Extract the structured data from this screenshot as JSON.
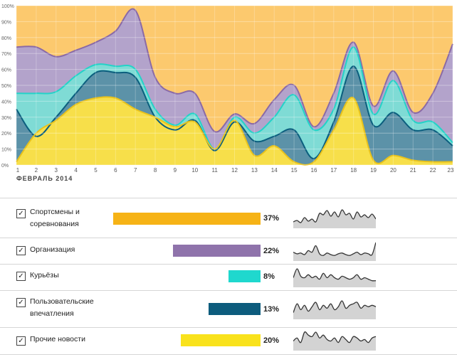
{
  "chart_data": {
    "type": "area",
    "stacking": "stacked-percent",
    "xlabel": "ФЕВРАЛЬ 2014",
    "ylabel": "",
    "x": [
      1,
      2,
      3,
      4,
      5,
      6,
      7,
      8,
      9,
      10,
      11,
      12,
      13,
      14,
      15,
      16,
      17,
      18,
      19,
      20,
      21,
      22,
      23
    ],
    "yticks": [
      "0%",
      "10%",
      "20%",
      "30%",
      "40%",
      "50%",
      "60%",
      "70%",
      "80%",
      "90%",
      "100%"
    ],
    "ylim": [
      0,
      100
    ],
    "grid": true,
    "series": [
      {
        "name": "Прочие новости",
        "color": "#f7df4a",
        "line": "#e8c21c",
        "cumulative": [
          2,
          20,
          28,
          38,
          42,
          42,
          35,
          30,
          24,
          27,
          10,
          28,
          6,
          12,
          2,
          2,
          22,
          42,
          3,
          6,
          3,
          2,
          2
        ]
      },
      {
        "name": "Пользовательские впечатления",
        "color": "#5c92a8",
        "line": "#0b5e7e",
        "cumulative": [
          35,
          18,
          30,
          45,
          58,
          58,
          55,
          30,
          22,
          28,
          9,
          27,
          15,
          18,
          22,
          4,
          27,
          62,
          25,
          33,
          22,
          22,
          12
        ]
      },
      {
        "name": "Курьёзы",
        "color": "#7fdbd5",
        "line": "#23d3c8",
        "cumulative": [
          45,
          45,
          46,
          56,
          63,
          62,
          60,
          35,
          25,
          32,
          10,
          30,
          20,
          30,
          44,
          22,
          35,
          74,
          32,
          53,
          28,
          27,
          14
        ]
      },
      {
        "name": "Организация",
        "color": "#b3a3cb",
        "line": "#8a6aa6",
        "cumulative": [
          74,
          74,
          68,
          72,
          77,
          84,
          97,
          55,
          45,
          45,
          21,
          32,
          26,
          41,
          50,
          24,
          45,
          77,
          37,
          59,
          33,
          45,
          76
        ]
      },
      {
        "name": "Спортсмены и соревнования",
        "color": "#fcc96e",
        "line": "#f6b316",
        "cumulative": [
          100,
          100,
          100,
          100,
          100,
          100,
          100,
          100,
          100,
          100,
          100,
          100,
          100,
          100,
          100,
          100,
          100,
          100,
          100,
          100,
          100,
          100,
          100
        ]
      }
    ]
  },
  "legend": {
    "items": [
      {
        "label_lines": [
          "Спортсмены и",
          "соревнования"
        ],
        "checked": "✓",
        "color": "#f6b316",
        "percent": "37%",
        "value": 37,
        "spark": [
          8,
          10,
          7,
          14,
          9,
          12,
          8,
          20,
          18,
          24,
          16,
          22,
          15,
          25,
          18,
          20,
          12,
          22,
          15,
          18,
          14,
          19,
          12
        ]
      },
      {
        "label_lines": [
          "Организация"
        ],
        "checked": "✓",
        "color": "#8f73ab",
        "percent": "22%",
        "value": 22,
        "spark": [
          10,
          8,
          9,
          7,
          12,
          10,
          18,
          8,
          6,
          9,
          7,
          6,
          8,
          9,
          7,
          6,
          8,
          10,
          7,
          9,
          8,
          7,
          22
        ]
      },
      {
        "label_lines": [
          "Курьёзы"
        ],
        "checked": "✓",
        "color": "#1fd8ce",
        "percent": "8%",
        "value": 8,
        "spark": [
          6,
          12,
          7,
          6,
          8,
          6,
          7,
          5,
          9,
          6,
          8,
          6,
          5,
          7,
          6,
          5,
          6,
          8,
          5,
          6,
          5,
          4,
          4
        ]
      },
      {
        "label_lines": [
          "Пользовательские",
          "впечатления"
        ],
        "checked": "✓",
        "color": "#0d5c7d",
        "percent": "13%",
        "value": 13,
        "spark": [
          4,
          10,
          6,
          9,
          5,
          8,
          11,
          6,
          9,
          7,
          10,
          6,
          8,
          12,
          7,
          9,
          10,
          11,
          7,
          9,
          8,
          9,
          8
        ]
      },
      {
        "label_lines": [
          "Прочие новости"
        ],
        "checked": "✓",
        "color": "#f9e21c",
        "percent": "20%",
        "value": 20,
        "spark": [
          6,
          8,
          5,
          12,
          10,
          9,
          12,
          8,
          10,
          7,
          6,
          8,
          5,
          9,
          7,
          5,
          9,
          8,
          6,
          7,
          5,
          8,
          9
        ]
      }
    ],
    "bar_scale_max": 37
  }
}
